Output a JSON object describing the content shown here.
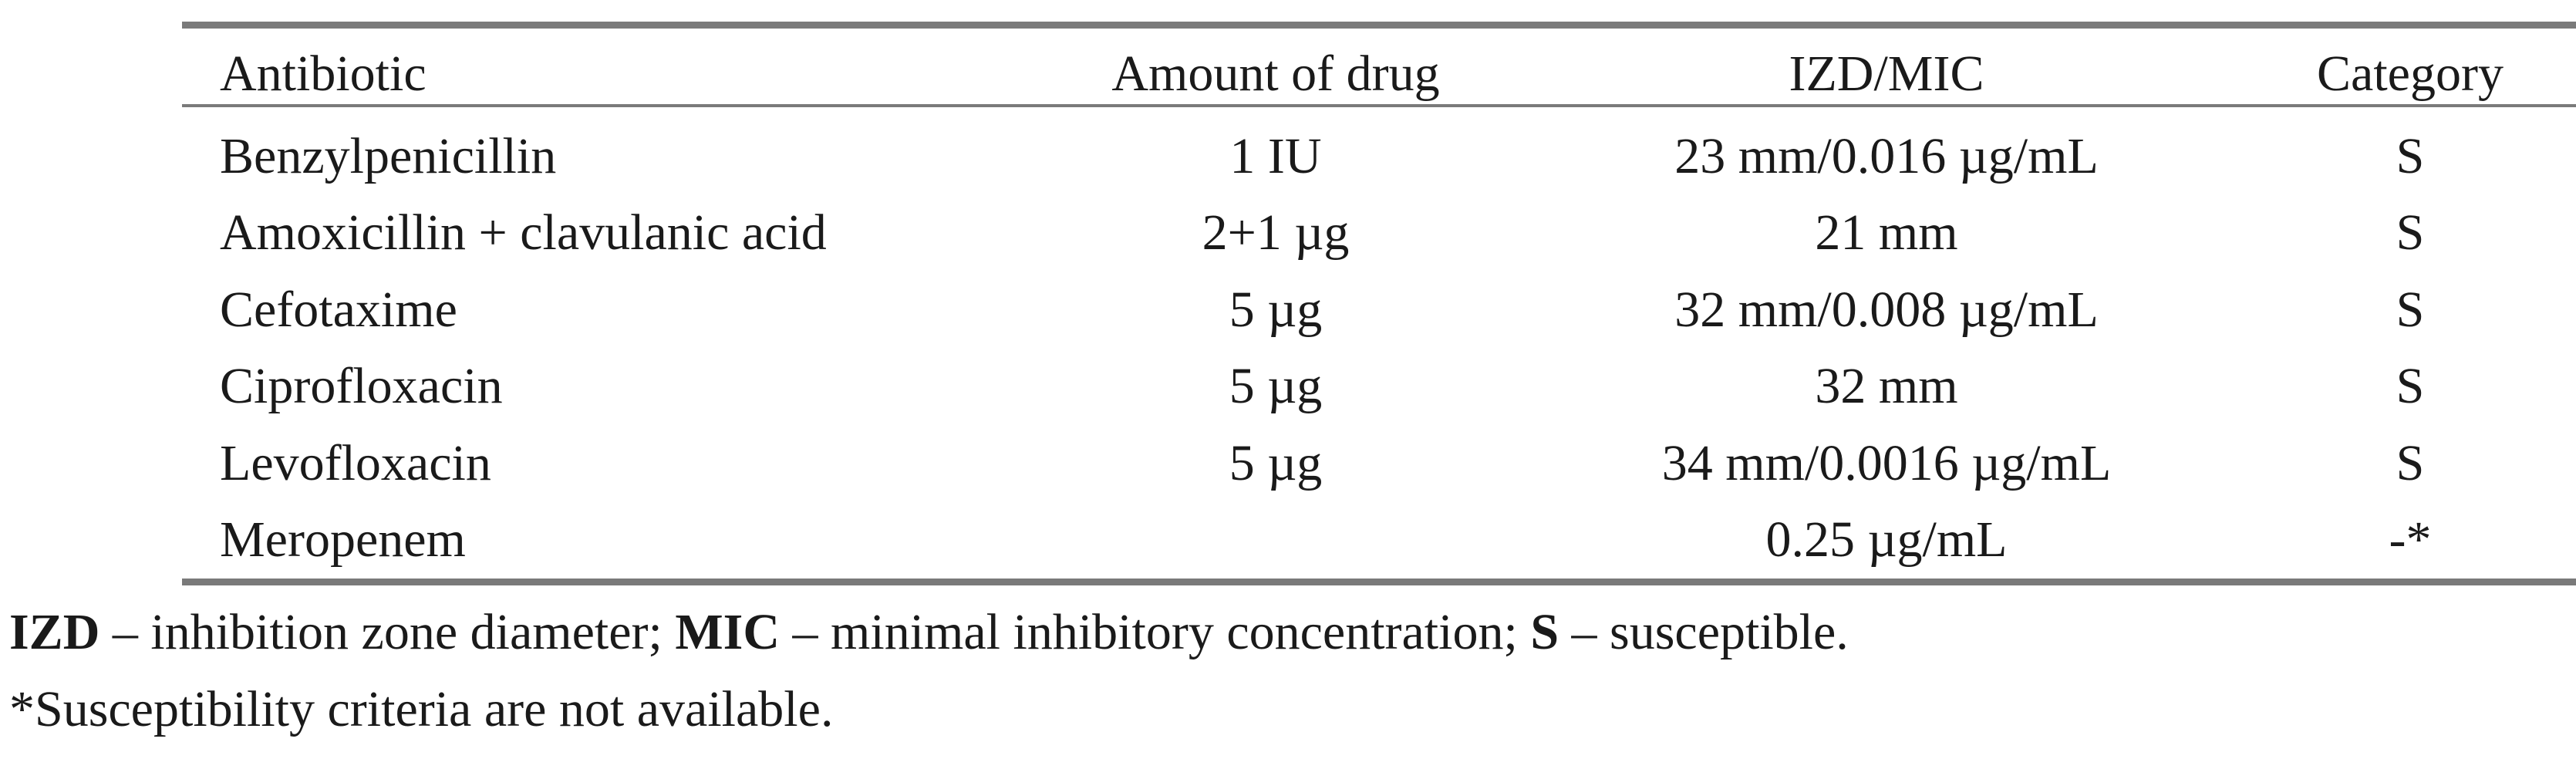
{
  "table": {
    "header": [
      "Antibiotic",
      "Amount of drug",
      "IZD/MIC",
      "Category"
    ],
    "rows": [
      [
        "Benzylpenicillin",
        "1 IU",
        "23 mm/0.016 µg/mL",
        "S"
      ],
      [
        "Amoxicillin + clavulanic acid",
        "2+1 µg",
        "21 mm",
        "S"
      ],
      [
        "Cefotaxime",
        "5 µg",
        "32 mm/0.008 µg/mL",
        "S"
      ],
      [
        "Ciprofloxacin",
        "5 µg",
        "32 mm",
        "S"
      ],
      [
        "Levofloxacin",
        "5 µg",
        "34 mm/0.0016 µg/mL",
        "S"
      ],
      [
        "Meropenem",
        null,
        "0.25 µg/mL",
        "-*"
      ]
    ]
  },
  "footnotes": {
    "definitions": [
      {
        "term": "IZD",
        "definition": "– inhibition zone diameter;"
      },
      {
        "term": "MIC",
        "definition": "– minimal inhibitory concentration;"
      },
      {
        "term": "S",
        "definition": "– susceptible."
      }
    ],
    "note": "*Susceptibility criteria are not available."
  }
}
